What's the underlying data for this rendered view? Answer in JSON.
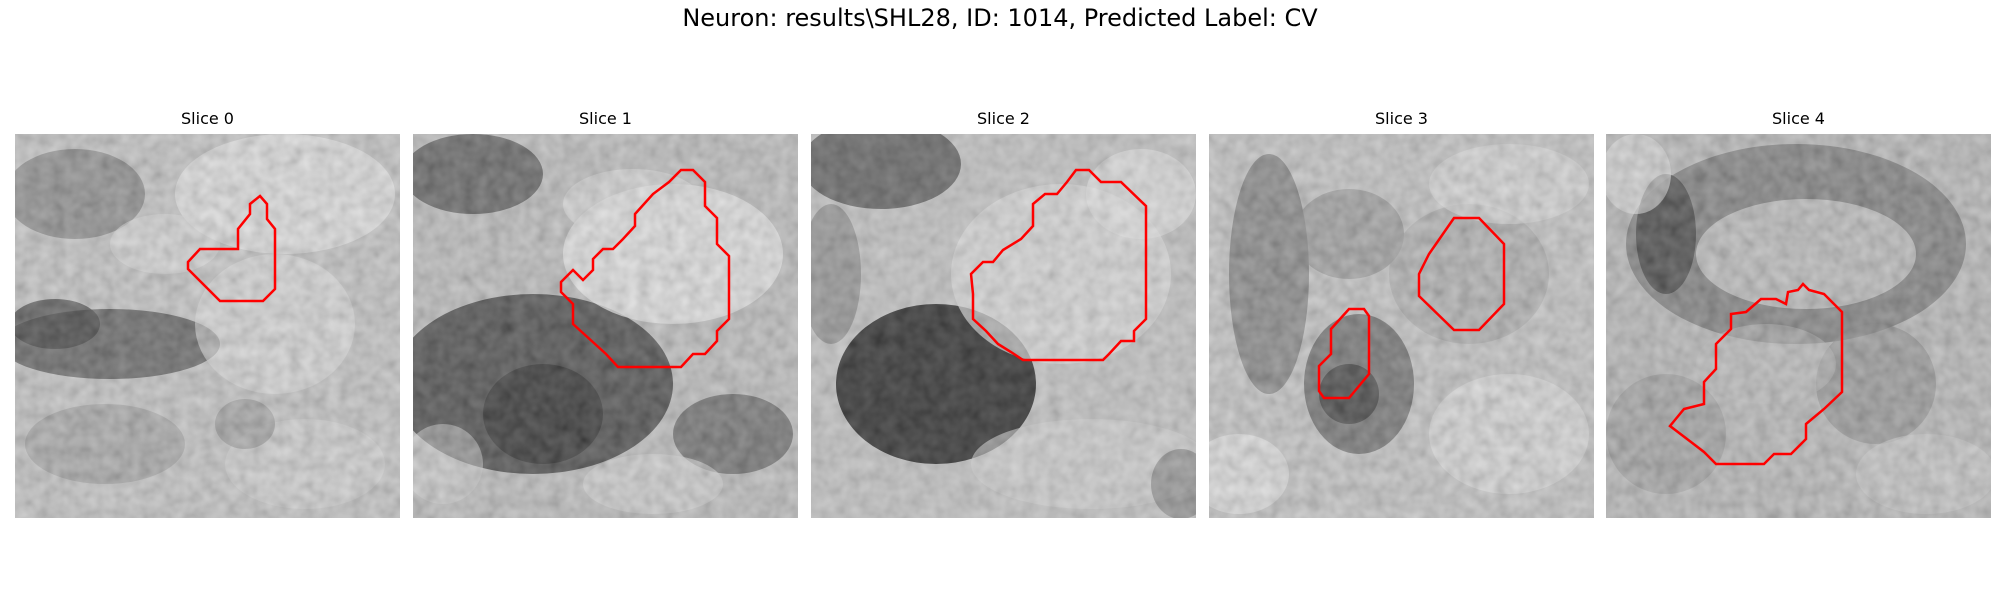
{
  "figure": {
    "title": "Neuron: results\\SHL28, ID: 1014, Predicted Label: CV"
  },
  "panels": [
    {
      "title": "Slice 0"
    },
    {
      "title": "Slice 1"
    },
    {
      "title": "Slice 2"
    },
    {
      "title": "Slice 3"
    },
    {
      "title": "Slice 4"
    }
  ],
  "colors": {
    "contour": "#ff0000",
    "background": "#ffffff"
  }
}
